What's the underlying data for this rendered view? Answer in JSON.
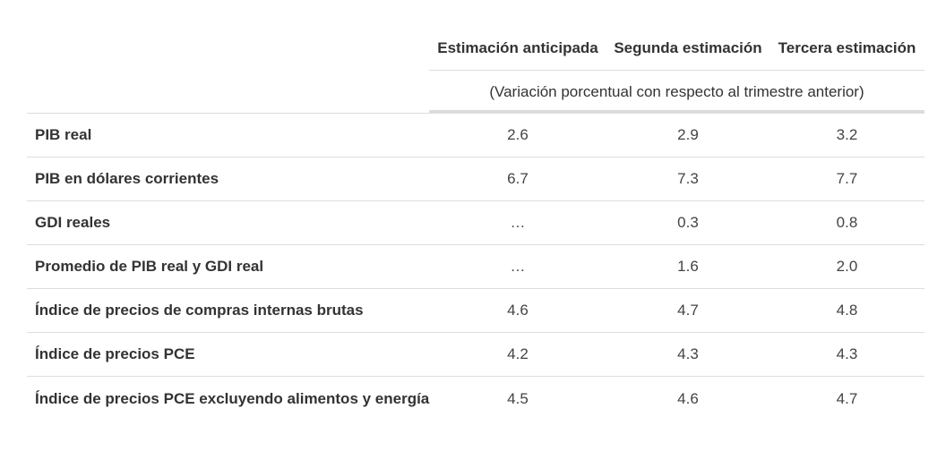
{
  "table": {
    "columns": [
      "Estimación anticipada",
      "Segunda estimación",
      "Tercera estimación"
    ],
    "subheader": "(Variación porcentual con respecto al trimestre anterior)",
    "rows": [
      {
        "label": "PIB real",
        "values": [
          "2.6",
          "2.9",
          "3.2"
        ]
      },
      {
        "label": "PIB en dólares corrientes",
        "values": [
          "6.7",
          "7.3",
          "7.7"
        ]
      },
      {
        "label": "GDI reales",
        "values": [
          "…",
          "0.3",
          "0.8"
        ]
      },
      {
        "label": "Promedio de PIB real y GDI real",
        "values": [
          "…",
          "1.6",
          "2.0"
        ]
      },
      {
        "label": "Índice de precios de compras internas brutas",
        "values": [
          "4.6",
          "4.7",
          "4.8"
        ]
      },
      {
        "label": "Índice de precios PCE",
        "values": [
          "4.2",
          "4.3",
          "4.3"
        ]
      },
      {
        "label": "Índice de precios PCE excluyendo alimentos y energía",
        "values": [
          "4.5",
          "4.6",
          "4.7"
        ]
      }
    ]
  }
}
